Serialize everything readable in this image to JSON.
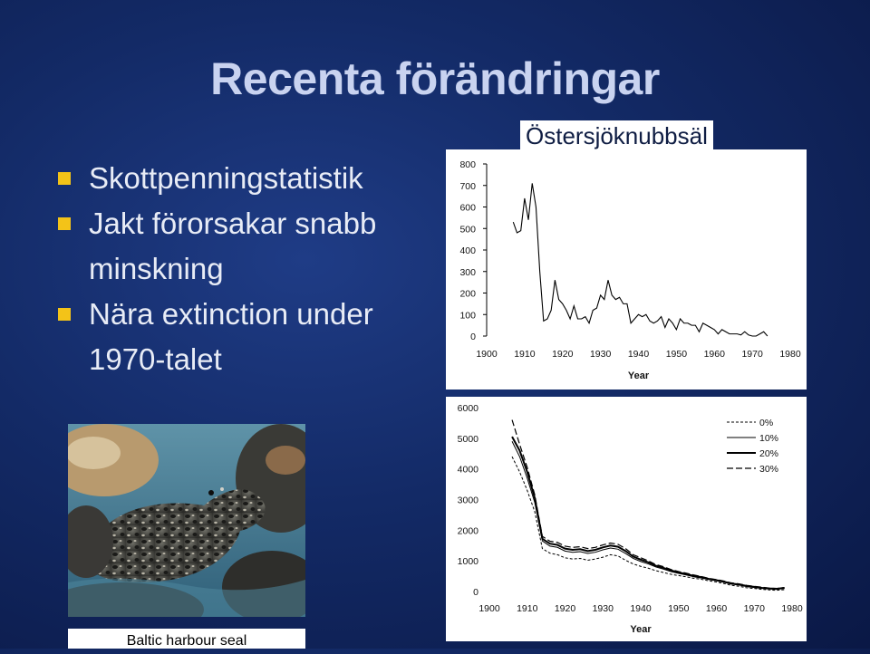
{
  "slide": {
    "title": "Recenta förändringar",
    "bullets": [
      "Skottpenningstatistik",
      "Jakt förorsakar snabb minskning",
      "Nära extinction under 1970-talet"
    ],
    "bullet_color": "#f3c318",
    "photo_caption": "Baltic harbour seal"
  },
  "chart_data": [
    {
      "type": "line",
      "title": "Östersjöknubbsäl",
      "xlabel": "Year",
      "ylabel": "",
      "xlim": [
        1900,
        1980
      ],
      "ylim": [
        0,
        800
      ],
      "x_ticks": [
        "1900",
        "1910",
        "1920",
        "1930",
        "1940",
        "1950",
        "1960",
        "1970",
        "1980"
      ],
      "y_ticks": [
        "800",
        "700",
        "600",
        "500",
        "400",
        "300",
        "200",
        "100",
        "0"
      ],
      "series": [
        {
          "x": [
            1907,
            1908,
            1909,
            1910,
            1911,
            1912,
            1913,
            1914,
            1915,
            1916,
            1917,
            1918,
            1919,
            1920,
            1921,
            1922,
            1923,
            1924,
            1925,
            1926,
            1927,
            1928,
            1929,
            1930,
            1931,
            1932,
            1933,
            1934,
            1935,
            1936,
            1937,
            1938,
            1939,
            1940,
            1941,
            1942,
            1943,
            1944,
            1945,
            1946,
            1947,
            1948,
            1949,
            1950,
            1951,
            1952,
            1953,
            1954,
            1955,
            1956,
            1957,
            1958,
            1959,
            1960,
            1961,
            1962,
            1963,
            1964,
            1965,
            1966,
            1967,
            1968,
            1969,
            1970,
            1971,
            1972,
            1973,
            1974
          ],
          "values": [
            530,
            480,
            490,
            640,
            540,
            710,
            600,
            300,
            70,
            80,
            120,
            260,
            170,
            150,
            120,
            80,
            140,
            80,
            80,
            90,
            60,
            120,
            130,
            190,
            170,
            260,
            190,
            170,
            180,
            150,
            150,
            60,
            80,
            100,
            90,
            100,
            70,
            60,
            70,
            90,
            40,
            80,
            60,
            30,
            80,
            60,
            60,
            50,
            50,
            20,
            60,
            50,
            40,
            30,
            10,
            30,
            20,
            10,
            10,
            10,
            5,
            20,
            5,
            0,
            0,
            10,
            20,
            0
          ]
        }
      ]
    },
    {
      "type": "line",
      "title": "",
      "xlabel": "Year",
      "ylabel": "",
      "xlim": [
        1900,
        1980
      ],
      "ylim": [
        0,
        6000
      ],
      "x_ticks": [
        "1900",
        "1910",
        "1920",
        "1930",
        "1940",
        "1950",
        "1960",
        "1970",
        "1980"
      ],
      "y_ticks": [
        "6000",
        "5000",
        "4000",
        "3000",
        "2000",
        "1000",
        "0"
      ],
      "x": [
        1906,
        1908,
        1910,
        1912,
        1914,
        1916,
        1918,
        1920,
        1922,
        1924,
        1926,
        1928,
        1930,
        1932,
        1934,
        1936,
        1938,
        1940,
        1942,
        1944,
        1946,
        1948,
        1950,
        1952,
        1954,
        1956,
        1958,
        1960,
        1962,
        1964,
        1966,
        1968,
        1970,
        1972,
        1974,
        1976,
        1978
      ],
      "series": [
        {
          "name": "0%",
          "values": [
            4400,
            3900,
            3300,
            2600,
            1400,
            1250,
            1200,
            1100,
            1060,
            1080,
            1020,
            1060,
            1120,
            1200,
            1160,
            1020,
            900,
            820,
            760,
            680,
            620,
            560,
            520,
            480,
            430,
            400,
            350,
            310,
            260,
            200,
            170,
            120,
            100,
            70,
            50,
            40,
            60
          ]
        },
        {
          "name": "10%",
          "values": [
            4900,
            4400,
            3700,
            2900,
            1650,
            1480,
            1440,
            1320,
            1280,
            1300,
            1240,
            1280,
            1360,
            1420,
            1380,
            1240,
            1080,
            980,
            900,
            800,
            730,
            650,
            590,
            540,
            480,
            440,
            390,
            350,
            300,
            240,
            210,
            160,
            130,
            100,
            80,
            70,
            100
          ]
        },
        {
          "name": "20%",
          "values": [
            5050,
            4600,
            3900,
            3050,
            1720,
            1560,
            1520,
            1400,
            1360,
            1380,
            1320,
            1360,
            1440,
            1500,
            1460,
            1320,
            1140,
            1040,
            950,
            840,
            770,
            690,
            620,
            570,
            510,
            470,
            410,
            370,
            320,
            260,
            230,
            180,
            150,
            120,
            100,
            90,
            120
          ]
        },
        {
          "name": "30%",
          "values": [
            5600,
            4800,
            4050,
            3150,
            1800,
            1640,
            1600,
            1480,
            1440,
            1460,
            1400,
            1440,
            1520,
            1580,
            1540,
            1400,
            1200,
            1100,
            1000,
            880,
            810,
            720,
            650,
            600,
            540,
            490,
            430,
            390,
            340,
            280,
            250,
            200,
            170,
            140,
            110,
            100,
            130
          ]
        }
      ]
    }
  ]
}
